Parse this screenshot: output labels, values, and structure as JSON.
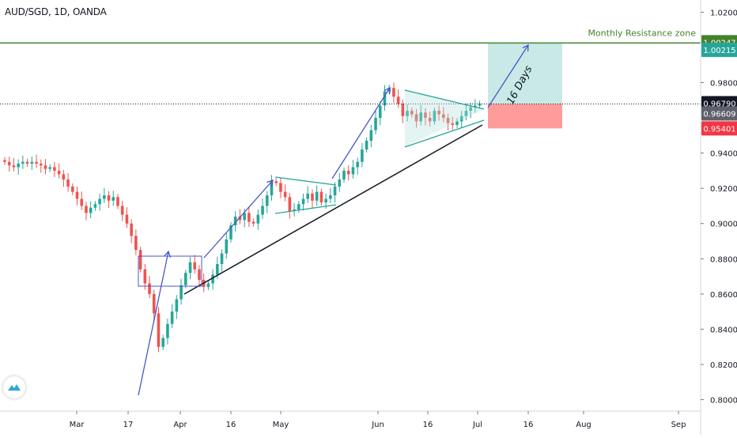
{
  "chart_title": "AUD/SGD, 1D, OANDA",
  "colors": {
    "up": "#26a69a",
    "down": "#ef5350",
    "resistance": "#43832b",
    "trendline": "#131722",
    "projection": "#4a56c9",
    "pattern": "#26a69a",
    "profit_zone": "#b2dfdb",
    "loss_zone": "#ff8a8a",
    "grid_axis": "#d1d4dc",
    "text": "#131722"
  },
  "chart_data": {
    "type": "candlestick",
    "symbol": "AUD/SGD",
    "timeframe": "1D",
    "source": "OANDA",
    "x_ticks": [
      "Mar",
      "17",
      "Apr",
      "16",
      "May",
      "Jun",
      "16",
      "Jul",
      "16",
      "Aug",
      "Sep"
    ],
    "y_ticks": [
      "1.02000",
      "0.98000",
      "0.94000",
      "0.92000",
      "0.90000",
      "0.88000",
      "0.86000",
      "0.84000",
      "0.82000",
      "0.80000"
    ],
    "ylim": [
      0.7935,
      1.0269
    ],
    "price_labels": [
      {
        "value": 1.00247,
        "text": "1.00247",
        "role": "resistance"
      },
      {
        "value": 1.00215,
        "text": "1.00215",
        "role": "target"
      },
      {
        "value": 0.9679,
        "text": "0.96790",
        "role": "last-price"
      },
      {
        "value": 0.96609,
        "text": "0.96609",
        "role": "entry"
      },
      {
        "value": 0.95401,
        "text": "0.95401",
        "role": "stop"
      }
    ],
    "annotations": {
      "resistance_label": "Monthly Resistance zone",
      "projection_label": "16 Days"
    },
    "candles_close": [
      0.935,
      0.933,
      0.932,
      0.934,
      0.935,
      0.934,
      0.935,
      0.934,
      0.933,
      0.931,
      0.932,
      0.93,
      0.928,
      0.925,
      0.921,
      0.918,
      0.914,
      0.91,
      0.906,
      0.909,
      0.911,
      0.914,
      0.916,
      0.913,
      0.915,
      0.91,
      0.905,
      0.9,
      0.893,
      0.885,
      0.874,
      0.866,
      0.86,
      0.849,
      0.83,
      0.835,
      0.843,
      0.85,
      0.857,
      0.865,
      0.872,
      0.878,
      0.874,
      0.868,
      0.864,
      0.866,
      0.871,
      0.877,
      0.883,
      0.891,
      0.899,
      0.904,
      0.902,
      0.906,
      0.901,
      0.9,
      0.905,
      0.91,
      0.916,
      0.924,
      0.923,
      0.918,
      0.915,
      0.907,
      0.908,
      0.911,
      0.914,
      0.917,
      0.913,
      0.918,
      0.912,
      0.914,
      0.916,
      0.921,
      0.925,
      0.93,
      0.928,
      0.932,
      0.935,
      0.942,
      0.947,
      0.953,
      0.96,
      0.967,
      0.975,
      0.977,
      0.972,
      0.968,
      0.961,
      0.964,
      0.962,
      0.958,
      0.963,
      0.96,
      0.958,
      0.964,
      0.962,
      0.96,
      0.957,
      0.956,
      0.958,
      0.961,
      0.964,
      0.966,
      0.967,
      0.968
    ]
  }
}
